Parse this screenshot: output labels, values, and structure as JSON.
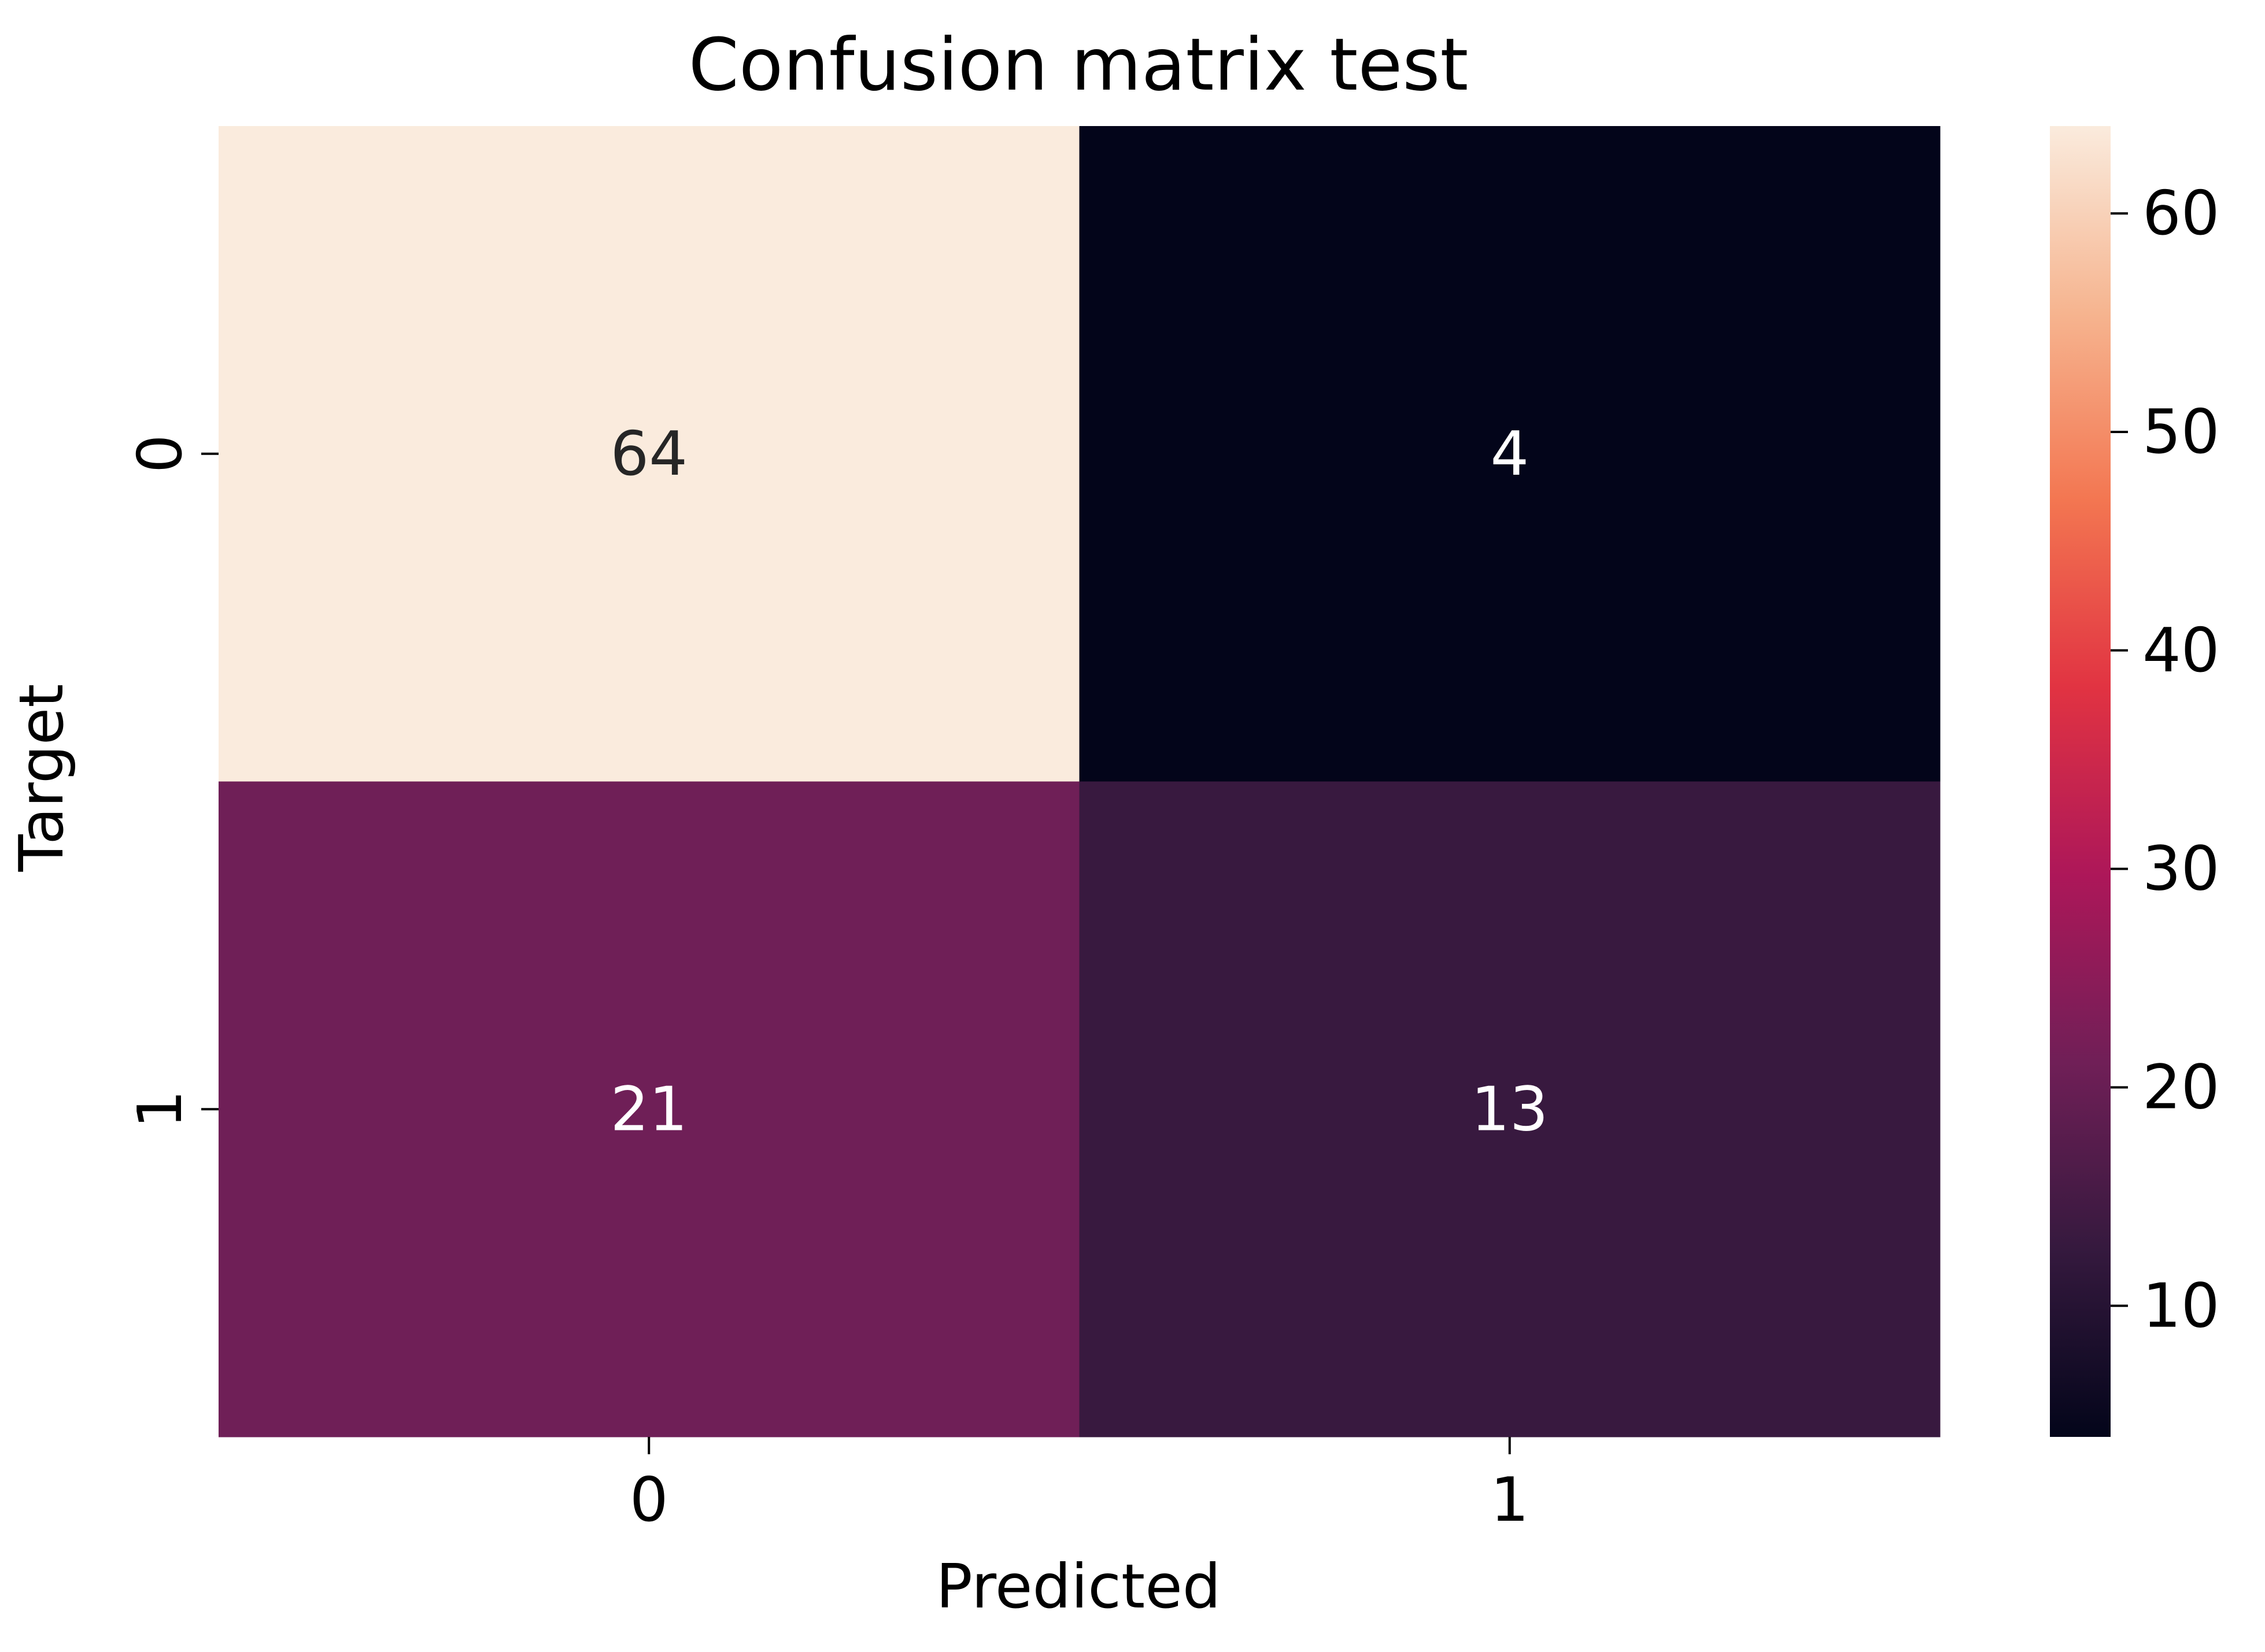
{
  "chart_data": {
    "type": "heatmap",
    "title": "Confusion matrix test",
    "xlabel": "Predicted",
    "ylabel": "Target",
    "x_categories": [
      "0",
      "1"
    ],
    "y_categories": [
      "0",
      "1"
    ],
    "values": [
      [
        64,
        4
      ],
      [
        21,
        13
      ]
    ],
    "colorbar": {
      "range": [
        4,
        64
      ],
      "ticks": [
        10,
        20,
        30,
        40,
        50,
        60
      ],
      "colormap": "rocket",
      "stops": [
        "#03051a",
        "#35193e",
        "#701f57",
        "#ad1759",
        "#e13342",
        "#f37651",
        "#f6b48f",
        "#faebdd"
      ]
    },
    "annotation_colors": {
      "light": "#ffffff",
      "dark": "#262626"
    }
  }
}
